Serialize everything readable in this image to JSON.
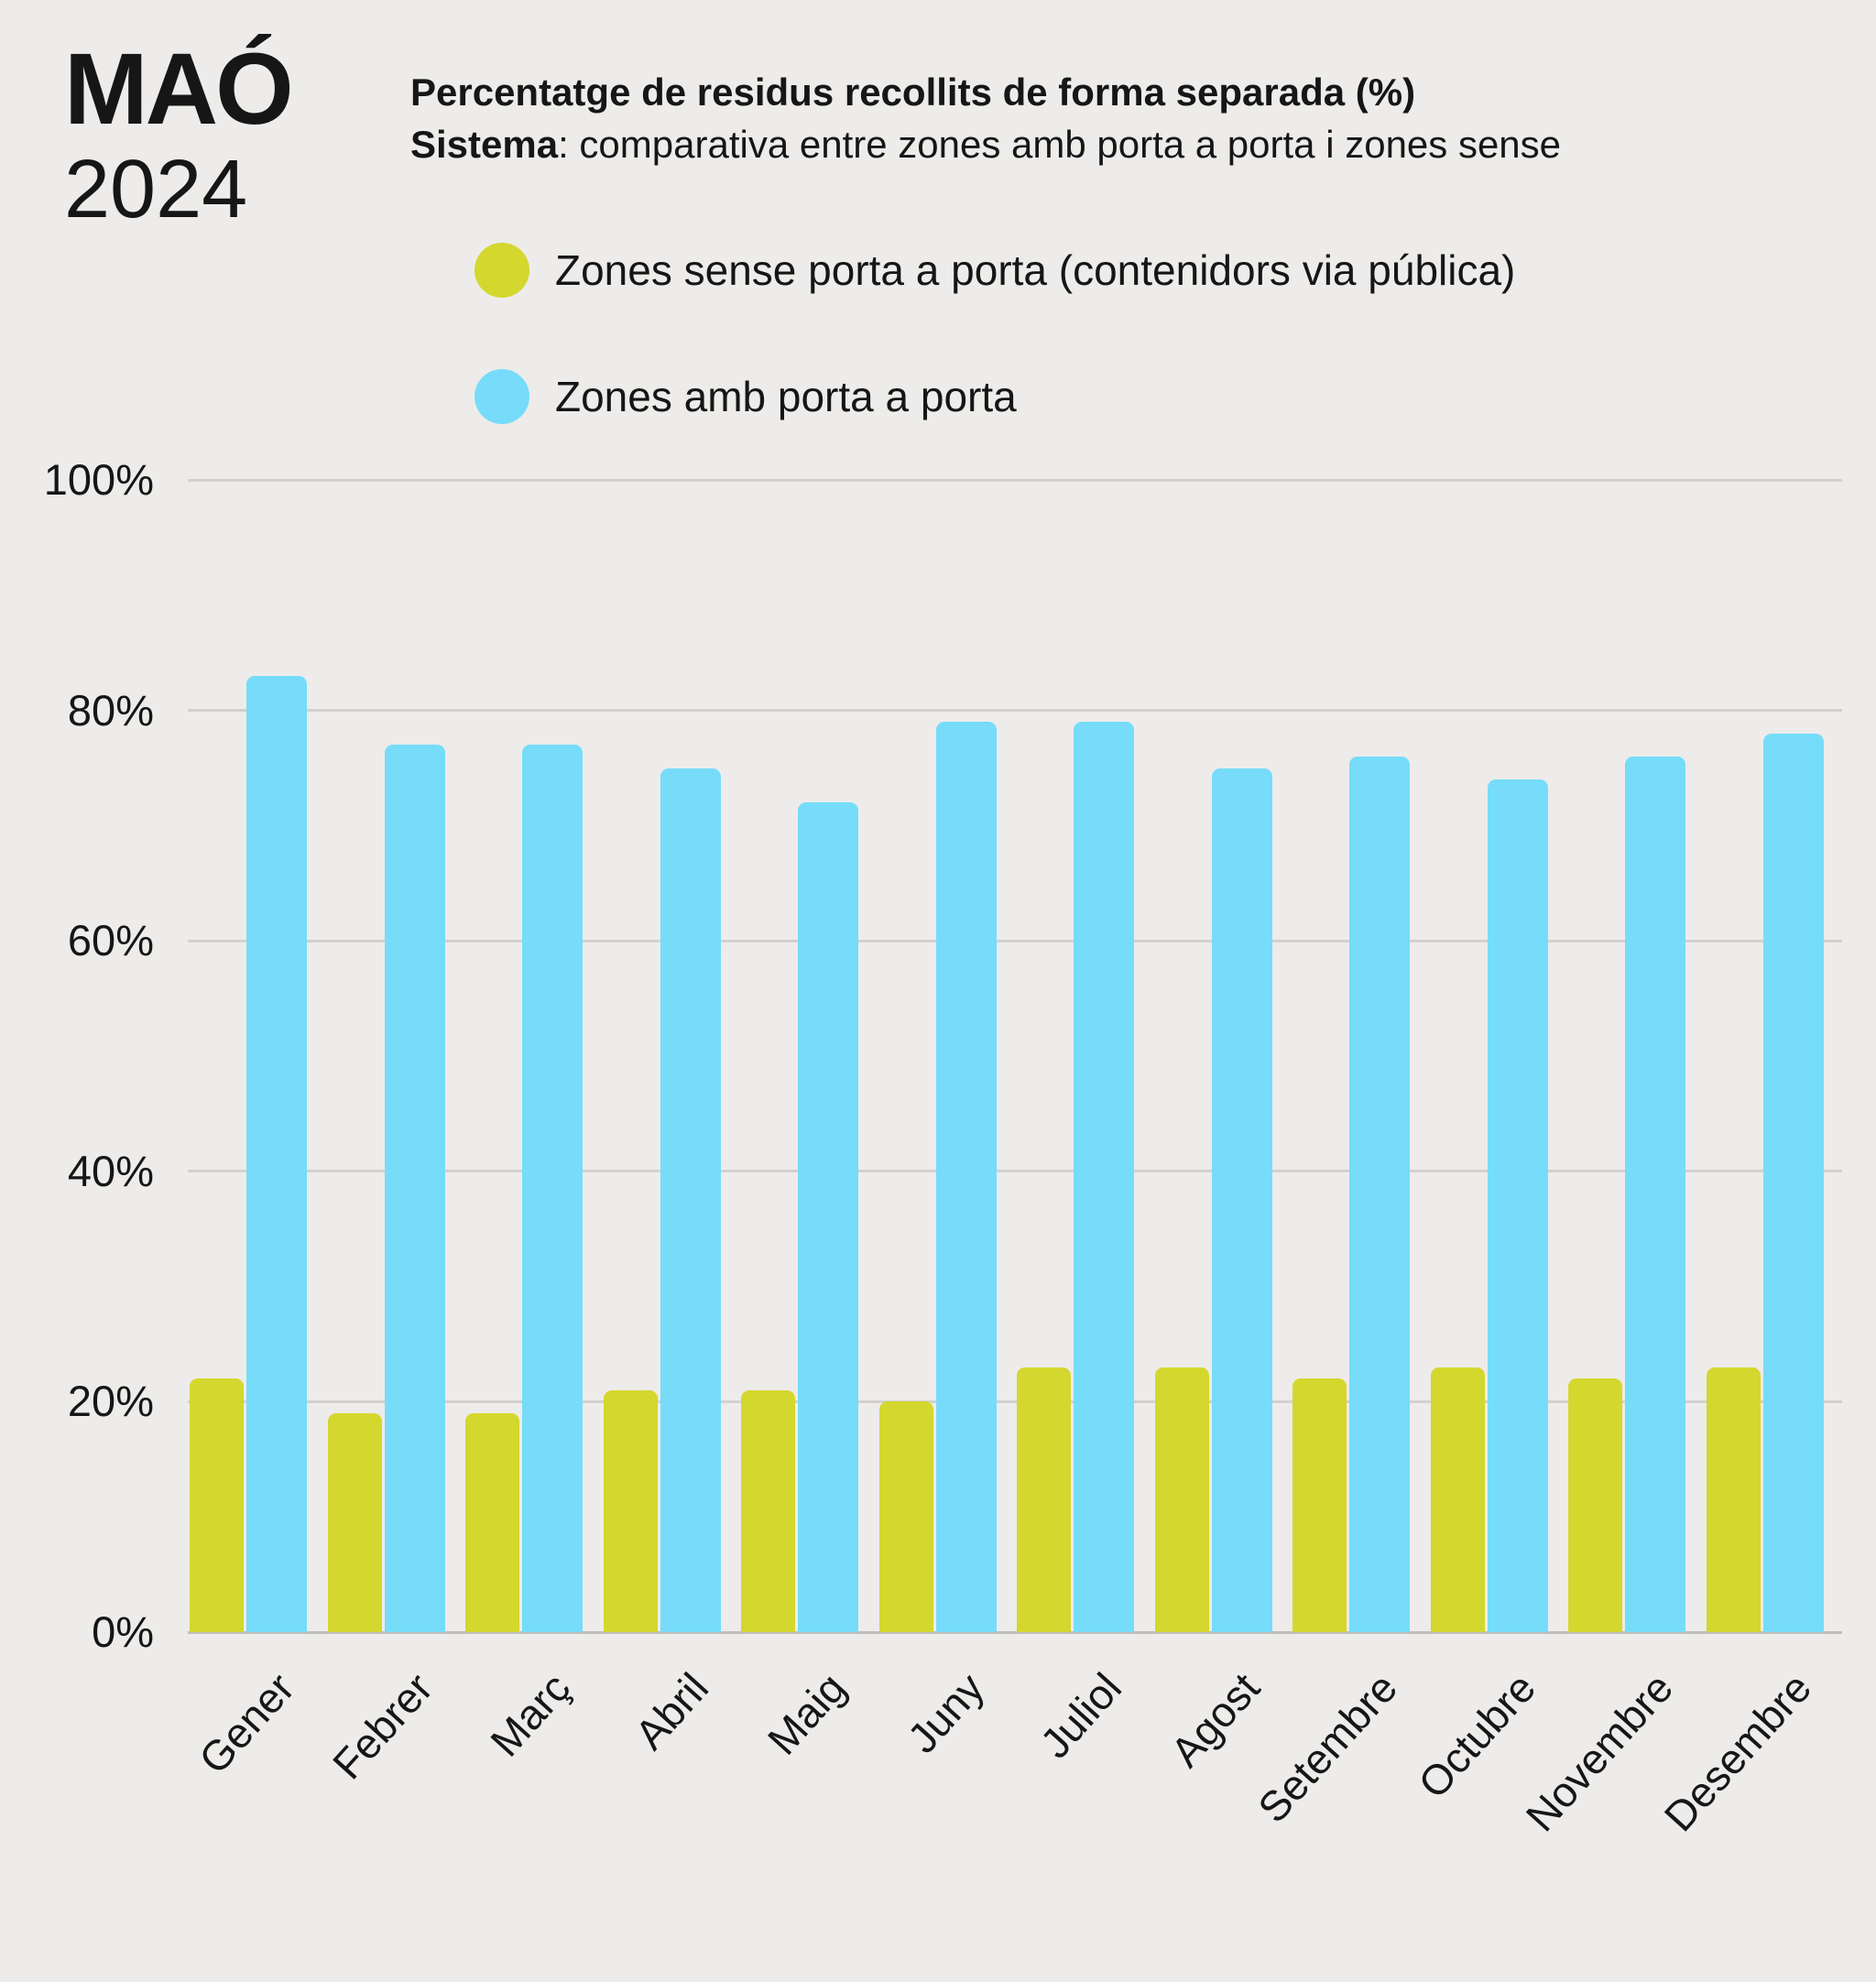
{
  "header": {
    "city": "MAÓ",
    "year": "2024"
  },
  "title": {
    "line1": "Percentatge de residus recollits de forma separada (%)",
    "line2_bold": "Sistema",
    "line2_rest": ": comparativa entre zones amb porta a porta i zones sense"
  },
  "legend": [
    {
      "label": "Zones sense porta a porta (contenidors via pública)",
      "color": "#d4d72e"
    },
    {
      "label": "Zones amb porta a porta",
      "color": "#76dcf9"
    }
  ],
  "chart_data": {
    "type": "bar",
    "title": "Percentatge de residus recollits de forma separada (%)",
    "categories": [
      "Gener",
      "Febrer",
      "Març",
      "Abril",
      "Maig",
      "Juny",
      "Juliol",
      "Agost",
      "Setembre",
      "Octubre",
      "Novembre",
      "Desembre"
    ],
    "series": [
      {
        "name": "Zones sense porta a porta (contenidors via pública)",
        "color": "#d4d72e",
        "values": [
          22,
          19,
          19,
          21,
          21,
          20,
          23,
          23,
          22,
          23,
          22,
          23
        ]
      },
      {
        "name": "Zones amb porta a porta",
        "color": "#76dcf9",
        "values": [
          83,
          77,
          77,
          75,
          72,
          79,
          79,
          75,
          76,
          74,
          76,
          78
        ]
      }
    ],
    "xlabel": "",
    "ylabel": "",
    "ylim": [
      0,
      100
    ],
    "yticks": [
      0,
      20,
      40,
      60,
      80,
      100
    ],
    "ytick_labels": [
      "0%",
      "20%",
      "40%",
      "60%",
      "80%",
      "100%"
    ],
    "grid": true,
    "legend_position": "top"
  },
  "colors": {
    "background": "#edecea",
    "text": "#161616",
    "gridline": "#d2d1cf"
  }
}
